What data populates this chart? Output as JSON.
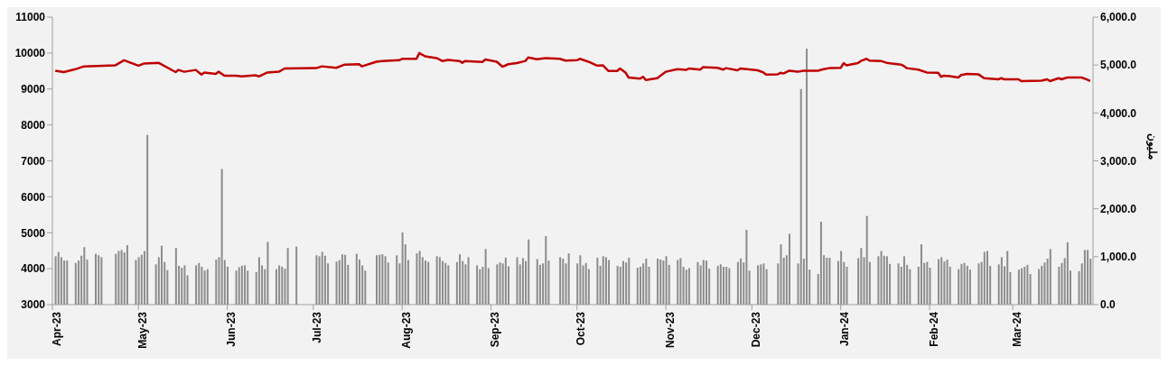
{
  "chart_data": {
    "type": "bar",
    "y2label": "مليون",
    "xlim": [
      "2023-04-01",
      "2024-03-29"
    ],
    "xticks": [
      {
        "value": "2023-04-01",
        "label": "Apr-23"
      },
      {
        "value": "2023-05-01",
        "label": "May-23"
      },
      {
        "value": "2023-06-01",
        "label": "Jun-23"
      },
      {
        "value": "2023-07-01",
        "label": "Jul-23"
      },
      {
        "value": "2023-08-01",
        "label": "Aug-23"
      },
      {
        "value": "2023-09-01",
        "label": "Sep-23"
      },
      {
        "value": "2023-10-01",
        "label": "Oct-23"
      },
      {
        "value": "2023-11-01",
        "label": "Nov-23"
      },
      {
        "value": "2023-12-01",
        "label": "Dec-23"
      },
      {
        "value": "2024-01-01",
        "label": "Jan-24"
      },
      {
        "value": "2024-02-01",
        "label": "Feb-24"
      },
      {
        "value": "2024-03-01",
        "label": "Mar-24"
      }
    ],
    "ylim": [
      3000,
      11000
    ],
    "yticks": [
      3000,
      4000,
      5000,
      6000,
      7000,
      8000,
      9000,
      10000,
      11000
    ],
    "y2lim": [
      0,
      6000
    ],
    "y2ticks": [
      {
        "value": 0,
        "label": "0.0"
      },
      {
        "value": 1000,
        "label": "1,000.0"
      },
      {
        "value": 2000,
        "label": "2,000.0"
      },
      {
        "value": 3000,
        "label": "3,000.0"
      },
      {
        "value": 4000,
        "label": "4,000.0"
      },
      {
        "value": 5000,
        "label": "5,000.0"
      },
      {
        "value": 6000,
        "label": "6,000.0"
      }
    ],
    "series": [
      {
        "axis": "y2",
        "color": "#8c8c8c",
        "x": [
          "2023-04-02",
          "2023-04-03",
          "2023-04-04",
          "2023-04-05",
          "2023-04-06",
          "2023-04-09",
          "2023-04-10",
          "2023-04-11",
          "2023-04-12",
          "2023-04-13",
          "2023-04-16",
          "2023-04-17",
          "2023-04-18",
          "2023-04-23",
          "2023-04-24",
          "2023-04-25",
          "2023-04-26",
          "2023-04-27",
          "2023-04-30",
          "2023-05-01",
          "2023-05-02",
          "2023-05-03",
          "2023-05-04",
          "2023-05-07",
          "2023-05-08",
          "2023-05-09",
          "2023-05-10",
          "2023-05-11",
          "2023-05-14",
          "2023-05-15",
          "2023-05-16",
          "2023-05-17",
          "2023-05-18",
          "2023-05-21",
          "2023-05-22",
          "2023-05-23",
          "2023-05-24",
          "2023-05-25",
          "2023-05-28",
          "2023-05-29",
          "2023-05-30",
          "2023-05-31",
          "2023-06-01",
          "2023-06-04",
          "2023-06-05",
          "2023-06-06",
          "2023-06-07",
          "2023-06-08",
          "2023-06-11",
          "2023-06-12",
          "2023-06-13",
          "2023-06-14",
          "2023-06-15",
          "2023-06-18",
          "2023-06-19",
          "2023-06-20",
          "2023-06-21",
          "2023-06-22",
          "2023-06-25",
          "2023-07-02",
          "2023-07-03",
          "2023-07-04",
          "2023-07-05",
          "2023-07-06",
          "2023-07-09",
          "2023-07-10",
          "2023-07-11",
          "2023-07-12",
          "2023-07-13",
          "2023-07-16",
          "2023-07-17",
          "2023-07-18",
          "2023-07-19",
          "2023-07-23",
          "2023-07-24",
          "2023-07-25",
          "2023-07-26",
          "2023-07-27",
          "2023-07-30",
          "2023-07-31",
          "2023-08-01",
          "2023-08-02",
          "2023-08-03",
          "2023-08-06",
          "2023-08-07",
          "2023-08-08",
          "2023-08-09",
          "2023-08-10",
          "2023-08-13",
          "2023-08-14",
          "2023-08-15",
          "2023-08-16",
          "2023-08-17",
          "2023-08-20",
          "2023-08-21",
          "2023-08-22",
          "2023-08-23",
          "2023-08-24",
          "2023-08-27",
          "2023-08-28",
          "2023-08-29",
          "2023-08-30",
          "2023-08-31",
          "2023-09-03",
          "2023-09-04",
          "2023-09-05",
          "2023-09-06",
          "2023-09-07",
          "2023-09-10",
          "2023-09-11",
          "2023-09-12",
          "2023-09-13",
          "2023-09-14",
          "2023-09-17",
          "2023-09-18",
          "2023-09-19",
          "2023-09-20",
          "2023-09-21",
          "2023-09-25",
          "2023-09-26",
          "2023-09-27",
          "2023-09-28",
          "2023-10-01",
          "2023-10-02",
          "2023-10-03",
          "2023-10-04",
          "2023-10-05",
          "2023-10-08",
          "2023-10-09",
          "2023-10-10",
          "2023-10-11",
          "2023-10-12",
          "2023-10-15",
          "2023-10-16",
          "2023-10-17",
          "2023-10-18",
          "2023-10-19",
          "2023-10-22",
          "2023-10-23",
          "2023-10-24",
          "2023-10-25",
          "2023-10-26",
          "2023-10-29",
          "2023-10-30",
          "2023-10-31",
          "2023-11-01",
          "2023-11-02",
          "2023-11-05",
          "2023-11-06",
          "2023-11-07",
          "2023-11-08",
          "2023-11-09",
          "2023-11-12",
          "2023-11-13",
          "2023-11-14",
          "2023-11-15",
          "2023-11-16",
          "2023-11-19",
          "2023-11-20",
          "2023-11-21",
          "2023-11-22",
          "2023-11-23",
          "2023-11-26",
          "2023-11-27",
          "2023-11-28",
          "2023-11-29",
          "2023-11-30",
          "2023-12-03",
          "2023-12-04",
          "2023-12-05",
          "2023-12-06",
          "2023-12-10",
          "2023-12-11",
          "2023-12-12",
          "2023-12-13",
          "2023-12-14",
          "2023-12-17",
          "2023-12-18",
          "2023-12-19",
          "2023-12-20",
          "2023-12-21",
          "2023-12-24",
          "2023-12-25",
          "2023-12-26",
          "2023-12-27",
          "2023-12-28",
          "2023-12-31",
          "2024-01-01",
          "2024-01-02",
          "2024-01-03",
          "2024-01-07",
          "2024-01-08",
          "2024-01-09",
          "2024-01-10",
          "2024-01-11",
          "2024-01-14",
          "2024-01-15",
          "2024-01-16",
          "2024-01-17",
          "2024-01-18",
          "2024-01-21",
          "2024-01-22",
          "2024-01-23",
          "2024-01-24",
          "2024-01-25",
          "2024-01-28",
          "2024-01-29",
          "2024-01-30",
          "2024-01-31",
          "2024-02-01",
          "2024-02-04",
          "2024-02-05",
          "2024-02-06",
          "2024-02-07",
          "2024-02-08",
          "2024-02-11",
          "2024-02-12",
          "2024-02-13",
          "2024-02-14",
          "2024-02-15",
          "2024-02-18",
          "2024-02-19",
          "2024-02-20",
          "2024-02-21",
          "2024-02-22",
          "2024-02-25",
          "2024-02-26",
          "2024-02-27",
          "2024-02-28",
          "2024-02-29",
          "2024-03-03",
          "2024-03-04",
          "2024-03-05",
          "2024-03-06",
          "2024-03-07",
          "2024-03-10",
          "2024-03-11",
          "2024-03-12",
          "2024-03-13",
          "2024-03-14",
          "2024-03-17",
          "2024-03-18",
          "2024-03-19",
          "2024-03-20",
          "2024-03-21",
          "2024-03-24",
          "2024-03-25",
          "2024-03-26",
          "2024-03-27",
          "2024-03-28"
        ],
        "values": [
          1010,
          1100,
          990,
          920,
          920,
          870,
          920,
          1020,
          1200,
          940,
          1060,
          1030,
          990,
          1060,
          1120,
          1140,
          1090,
          1240,
          930,
          990,
          1040,
          1120,
          3540,
          840,
          990,
          1230,
          890,
          720,
          1180,
          810,
          770,
          820,
          610,
          820,
          870,
          790,
          710,
          740,
          940,
          990,
          2830,
          930,
          790,
          710,
          780,
          810,
          820,
          710,
          680,
          990,
          820,
          740,
          1310,
          740,
          820,
          790,
          750,
          1180,
          1210,
          1030,
          1010,
          1100,
          1020,
          860,
          900,
          930,
          1050,
          1040,
          830,
          1060,
          940,
          820,
          710,
          1030,
          1040,
          1050,
          1010,
          880,
          1030,
          860,
          1510,
          1260,
          930,
          1070,
          1120,
          990,
          920,
          890,
          1010,
          990,
          910,
          870,
          820,
          890,
          1050,
          910,
          840,
          990,
          820,
          740,
          790,
          1160,
          760,
          840,
          880,
          860,
          980,
          800,
          990,
          840,
          970,
          910,
          1360,
          950,
          830,
          860,
          1430,
          920,
          990,
          960,
          860,
          1070,
          860,
          1030,
          820,
          870,
          740,
          980,
          810,
          1010,
          990,
          930,
          810,
          790,
          910,
          880,
          980,
          770,
          790,
          860,
          960,
          790,
          960,
          940,
          920,
          1010,
          830,
          930,
          970,
          790,
          730,
          760,
          890,
          820,
          930,
          920,
          750,
          810,
          840,
          790,
          790,
          760,
          890,
          960,
          880,
          1560,
          710,
          820,
          840,
          860,
          740,
          860,
          1260,
          980,
          1030,
          1480,
          860,
          4500,
          960,
          5340,
          730,
          640,
          1730,
          1030,
          980,
          980,
          910,
          1120,
          890,
          790,
          970,
          1180,
          990,
          1850,
          890,
          1010,
          1120,
          1020,
          1010,
          850,
          860,
          790,
          1010,
          830,
          740,
          790,
          1260,
          870,
          890,
          770,
          950,
          990,
          900,
          940,
          790,
          740,
          850,
          870,
          810,
          730,
          860,
          890,
          1100,
          1120,
          810,
          840,
          990,
          800,
          1120,
          680,
          730,
          760,
          790,
          830,
          640,
          740,
          810,
          880,
          960,
          1160,
          790,
          870,
          970,
          1300,
          710,
          700,
          860,
          1140,
          1140,
          960
        ]
      },
      {
        "type": "line",
        "axis": "y",
        "color": "#c00000",
        "x": [
          "2023-04-02",
          "2023-04-05",
          "2023-04-09",
          "2023-04-12",
          "2023-04-23",
          "2023-04-26",
          "2023-05-01",
          "2023-05-03",
          "2023-05-08",
          "2023-05-14",
          "2023-05-15",
          "2023-05-17",
          "2023-05-21",
          "2023-05-23",
          "2023-05-24",
          "2023-05-28",
          "2023-05-29",
          "2023-05-31",
          "2023-06-04",
          "2023-06-06",
          "2023-06-11",
          "2023-06-12",
          "2023-06-15",
          "2023-06-19",
          "2023-06-21",
          "2023-07-02",
          "2023-07-04",
          "2023-07-09",
          "2023-07-12",
          "2023-07-17",
          "2023-07-18",
          "2023-07-23",
          "2023-07-25",
          "2023-07-31",
          "2023-08-01",
          "2023-08-06",
          "2023-08-07",
          "2023-08-09",
          "2023-08-13",
          "2023-08-15",
          "2023-08-17",
          "2023-08-21",
          "2023-08-22",
          "2023-08-23",
          "2023-08-29",
          "2023-08-30",
          "2023-09-03",
          "2023-09-05",
          "2023-09-07",
          "2023-09-10",
          "2023-09-13",
          "2023-09-14",
          "2023-09-17",
          "2023-09-20",
          "2023-09-25",
          "2023-09-27",
          "2023-10-01",
          "2023-10-02",
          "2023-10-05",
          "2023-10-08",
          "2023-10-10",
          "2023-10-12",
          "2023-10-15",
          "2023-10-16",
          "2023-10-18",
          "2023-10-19",
          "2023-10-23",
          "2023-10-24",
          "2023-10-25",
          "2023-10-29",
          "2023-11-01",
          "2023-11-05",
          "2023-11-08",
          "2023-11-09",
          "2023-11-13",
          "2023-11-14",
          "2023-11-19",
          "2023-11-21",
          "2023-11-22",
          "2023-11-26",
          "2023-11-27",
          "2023-12-03",
          "2023-12-05",
          "2023-12-06",
          "2023-12-10",
          "2023-12-11",
          "2023-12-12",
          "2023-12-14",
          "2023-12-17",
          "2023-12-19",
          "2023-12-24",
          "2023-12-26",
          "2023-12-28",
          "2024-01-01",
          "2024-01-02",
          "2024-01-03",
          "2024-01-07",
          "2024-01-08",
          "2024-01-10",
          "2024-01-11",
          "2024-01-15",
          "2024-01-17",
          "2024-01-22",
          "2024-01-23",
          "2024-01-24",
          "2024-01-28",
          "2024-01-31",
          "2024-02-04",
          "2024-02-05",
          "2024-02-06",
          "2024-02-08",
          "2024-02-11",
          "2024-02-12",
          "2024-02-14",
          "2024-02-18",
          "2024-02-20",
          "2024-02-25",
          "2024-02-26",
          "2024-02-27",
          "2024-03-03",
          "2024-03-04",
          "2024-03-11",
          "2024-03-13",
          "2024-03-14",
          "2024-03-17",
          "2024-03-18",
          "2024-03-20",
          "2024-03-25",
          "2024-03-27",
          "2024-03-28"
        ],
        "values": [
          9510,
          9470,
          9550,
          9630,
          9660,
          9800,
          9650,
          9710,
          9730,
          9470,
          9530,
          9480,
          9530,
          9400,
          9460,
          9420,
          9480,
          9370,
          9370,
          9350,
          9380,
          9350,
          9460,
          9480,
          9570,
          9580,
          9630,
          9590,
          9680,
          9690,
          9630,
          9760,
          9780,
          9800,
          9840,
          9840,
          10000,
          9910,
          9860,
          9780,
          9810,
          9780,
          9730,
          9780,
          9750,
          9820,
          9760,
          9620,
          9690,
          9720,
          9780,
          9880,
          9830,
          9860,
          9840,
          9790,
          9800,
          9840,
          9760,
          9650,
          9660,
          9500,
          9500,
          9570,
          9450,
          9320,
          9290,
          9340,
          9250,
          9300,
          9480,
          9550,
          9530,
          9570,
          9540,
          9610,
          9590,
          9540,
          9580,
          9520,
          9570,
          9520,
          9460,
          9400,
          9410,
          9450,
          9430,
          9510,
          9480,
          9510,
          9510,
          9550,
          9580,
          9590,
          9720,
          9660,
          9720,
          9780,
          9840,
          9790,
          9780,
          9730,
          9680,
          9640,
          9580,
          9540,
          9460,
          9450,
          9340,
          9370,
          9360,
          9320,
          9390,
          9420,
          9410,
          9300,
          9270,
          9300,
          9270,
          9270,
          9220,
          9230,
          9270,
          9220,
          9300,
          9270,
          9320,
          9320,
          9260,
          9220
        ]
      }
    ]
  }
}
